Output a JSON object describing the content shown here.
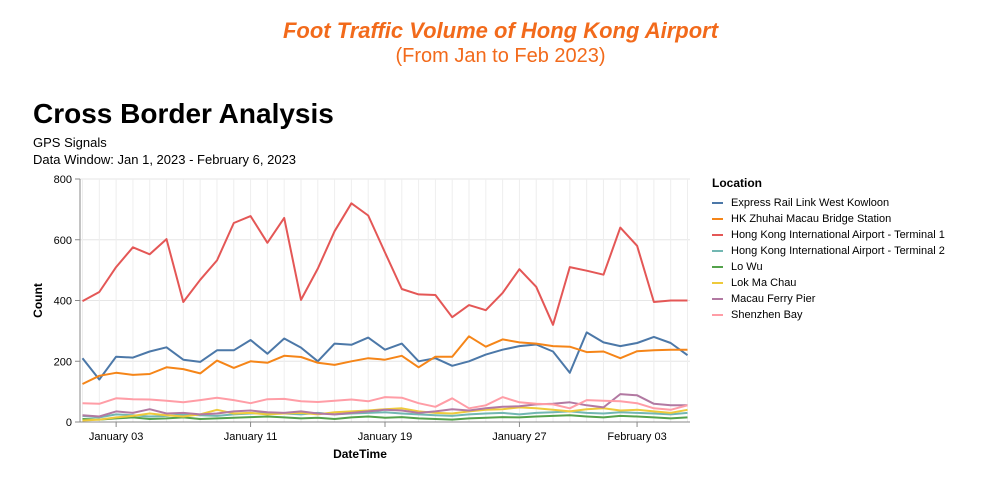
{
  "header": {
    "title": "Foot Traffic Volume of Hong Kong Airport",
    "subtitle": "(From Jan to Feb 2023)",
    "accent_color": "#f26a1b"
  },
  "chart_data": {
    "type": "line",
    "title": "Cross Border Analysis",
    "subtitle_lines": [
      "GPS Signals",
      "Data Window: Jan 1, 2023 -  February 6, 2023"
    ],
    "xlabel": "DateTime",
    "ylabel": "Count",
    "ylim": [
      0,
      800
    ],
    "yticks": [
      "0",
      "200",
      "400",
      "600",
      "800"
    ],
    "xticks": [
      {
        "label": "January 03",
        "date": "2023-01-03"
      },
      {
        "label": "January 11",
        "date": "2023-01-11"
      },
      {
        "label": "January 19",
        "date": "2023-01-19"
      },
      {
        "label": "January 27",
        "date": "2023-01-27"
      },
      {
        "label": "February 03",
        "date": "2023-02-03"
      }
    ],
    "grid": true,
    "legend": {
      "title": "Location",
      "placement": "right"
    },
    "x": [
      "2023-01-01",
      "2023-01-02",
      "2023-01-03",
      "2023-01-04",
      "2023-01-05",
      "2023-01-06",
      "2023-01-07",
      "2023-01-08",
      "2023-01-09",
      "2023-01-10",
      "2023-01-11",
      "2023-01-12",
      "2023-01-13",
      "2023-01-14",
      "2023-01-15",
      "2023-01-16",
      "2023-01-17",
      "2023-01-18",
      "2023-01-19",
      "2023-01-20",
      "2023-01-21",
      "2023-01-22",
      "2023-01-23",
      "2023-01-24",
      "2023-01-25",
      "2023-01-26",
      "2023-01-27",
      "2023-01-28",
      "2023-01-29",
      "2023-01-30",
      "2023-01-31",
      "2023-02-01",
      "2023-02-02",
      "2023-02-03",
      "2023-02-04",
      "2023-02-05",
      "2023-02-06"
    ],
    "series": [
      {
        "name": "Express Rail Link West Kowloon",
        "color": "#4c78a8",
        "values": [
          210,
          140,
          215,
          212,
          232,
          246,
          205,
          198,
          236,
          236,
          270,
          225,
          275,
          245,
          200,
          258,
          254,
          278,
          238,
          258,
          200,
          210,
          185,
          200,
          222,
          238,
          250,
          255,
          232,
          162,
          295,
          262,
          250,
          260,
          280,
          260,
          220
        ]
      },
      {
        "name": "HK Zhuhai Macau Bridge Station",
        "color": "#f58518",
        "values": [
          125,
          152,
          162,
          155,
          158,
          180,
          174,
          160,
          202,
          178,
          200,
          195,
          218,
          214,
          195,
          188,
          200,
          210,
          205,
          218,
          180,
          215,
          215,
          282,
          248,
          272,
          262,
          258,
          250,
          248,
          230,
          232,
          210,
          233,
          236,
          238,
          238
        ]
      },
      {
        "name": "Hong Kong International Airport - Terminal 1",
        "color": "#e45756",
        "values": [
          398,
          428,
          510,
          575,
          552,
          602,
          395,
          468,
          532,
          655,
          678,
          590,
          672,
          402,
          505,
          628,
          720,
          680,
          558,
          438,
          420,
          418,
          345,
          385,
          368,
          425,
          503,
          445,
          320,
          510,
          498,
          485,
          640,
          580,
          395,
          400,
          400
        ]
      },
      {
        "name": "Hong Kong International Airport - Terminal 2",
        "color": "#72b7b2",
        "values": [
          20,
          15,
          25,
          22,
          18,
          20,
          25,
          22,
          20,
          25,
          28,
          30,
          28,
          25,
          30,
          25,
          28,
          30,
          32,
          28,
          25,
          22,
          20,
          25,
          28,
          30,
          25,
          30,
          32,
          35,
          30,
          28,
          32,
          30,
          28,
          25,
          30
        ]
      },
      {
        "name": "Lo Wu",
        "color": "#54a24b",
        "values": [
          10,
          8,
          12,
          15,
          10,
          12,
          15,
          10,
          12,
          14,
          16,
          18,
          15,
          12,
          14,
          10,
          15,
          18,
          14,
          16,
          12,
          10,
          8,
          12,
          14,
          16,
          15,
          18,
          20,
          22,
          18,
          15,
          20,
          18,
          15,
          12,
          15
        ]
      },
      {
        "name": "Lok Ma Chau",
        "color": "#eeca3b",
        "values": [
          5,
          8,
          15,
          20,
          28,
          22,
          18,
          25,
          40,
          28,
          30,
          25,
          28,
          30,
          25,
          32,
          35,
          38,
          42,
          45,
          35,
          30,
          28,
          35,
          40,
          42,
          48,
          45,
          40,
          35,
          42,
          45,
          38,
          40,
          35,
          30,
          40
        ]
      },
      {
        "name": "Macau Ferry Pier",
        "color": "#b279a2",
        "values": [
          22,
          18,
          35,
          30,
          42,
          28,
          30,
          25,
          28,
          35,
          38,
          32,
          30,
          35,
          28,
          25,
          30,
          35,
          40,
          38,
          30,
          35,
          42,
          38,
          45,
          50,
          52,
          58,
          60,
          65,
          55,
          48,
          92,
          88,
          60,
          55,
          55
        ]
      },
      {
        "name": "Shenzhen Bay",
        "color": "#ff9da6",
        "values": [
          62,
          60,
          78,
          75,
          74,
          70,
          65,
          72,
          80,
          72,
          62,
          75,
          76,
          68,
          66,
          70,
          74,
          68,
          82,
          80,
          62,
          50,
          78,
          45,
          55,
          82,
          65,
          60,
          58,
          45,
          72,
          70,
          68,
          62,
          45,
          40,
          55
        ]
      }
    ]
  }
}
